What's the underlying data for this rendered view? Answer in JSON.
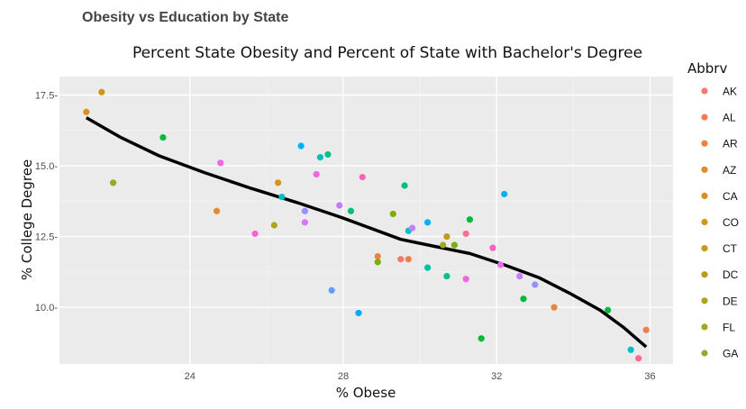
{
  "page_title": "Obesity vs Education by State",
  "chart_data": {
    "type": "scatter",
    "title": "Percent State Obesity and Percent of State with Bachelor's Degree",
    "xlabel": "% Obese",
    "ylabel": "% College Degree",
    "xlim": [
      20.6,
      36.6
    ],
    "ylim": [
      8.0,
      18.15
    ],
    "x_ticks": [
      24,
      28,
      32,
      36
    ],
    "y_ticks": [
      10.0,
      12.5,
      15.0,
      17.5
    ],
    "x_tick_labels": [
      "24",
      "28",
      "32",
      "36"
    ],
    "y_tick_labels": [
      "10.0-",
      "12.5-",
      "15.0-",
      "17.5-"
    ],
    "grid": true,
    "legend": {
      "title": "Abbrv",
      "placement": "right",
      "entries": [
        {
          "label": "AK",
          "color": "#F8766D"
        },
        {
          "label": "AL",
          "color": "#F07C55"
        },
        {
          "label": "AR",
          "color": "#E8843E"
        },
        {
          "label": "AZ",
          "color": "#E08B2C"
        },
        {
          "label": "CA",
          "color": "#D8911E"
        },
        {
          "label": "CO",
          "color": "#CF9619"
        },
        {
          "label": "CT",
          "color": "#C49A18"
        },
        {
          "label": "DC",
          "color": "#B99E1A"
        },
        {
          "label": "DE",
          "color": "#AEA21E"
        },
        {
          "label": "FL",
          "color": "#A3A524"
        },
        {
          "label": "GA",
          "color": "#97A82B"
        }
      ]
    },
    "points": [
      {
        "x": 21.3,
        "y": 16.9,
        "color": "#D8911E"
      },
      {
        "x": 21.7,
        "y": 17.6,
        "color": "#CF9619"
      },
      {
        "x": 22.0,
        "y": 14.4,
        "color": "#97A82B"
      },
      {
        "x": 23.3,
        "y": 16.0,
        "color": "#00BA38"
      },
      {
        "x": 24.7,
        "y": 13.4,
        "color": "#E08B2C"
      },
      {
        "x": 24.8,
        "y": 15.1,
        "color": "#F564E3"
      },
      {
        "x": 25.7,
        "y": 12.6,
        "color": "#FB61D7"
      },
      {
        "x": 26.2,
        "y": 12.9,
        "color": "#AEA21E"
      },
      {
        "x": 26.3,
        "y": 14.4,
        "color": "#D8911E"
      },
      {
        "x": 26.4,
        "y": 13.9,
        "color": "#00BFC4"
      },
      {
        "x": 26.9,
        "y": 15.7,
        "color": "#00B0F6"
      },
      {
        "x": 27.0,
        "y": 13.4,
        "color": "#9590FF"
      },
      {
        "x": 27.0,
        "y": 13.0,
        "color": "#DB72FB"
      },
      {
        "x": 27.3,
        "y": 14.7,
        "color": "#F564E3"
      },
      {
        "x": 27.4,
        "y": 15.3,
        "color": "#00BFC4"
      },
      {
        "x": 27.6,
        "y": 15.4,
        "color": "#00C08B"
      },
      {
        "x": 27.7,
        "y": 10.6,
        "color": "#619CFF"
      },
      {
        "x": 27.9,
        "y": 13.6,
        "color": "#C77CFF"
      },
      {
        "x": 28.2,
        "y": 13.4,
        "color": "#00BF7D"
      },
      {
        "x": 28.4,
        "y": 9.8,
        "color": "#00A9FF"
      },
      {
        "x": 28.5,
        "y": 14.6,
        "color": "#FF62BC"
      },
      {
        "x": 28.9,
        "y": 11.8,
        "color": "#E8843E"
      },
      {
        "x": 28.9,
        "y": 11.6,
        "color": "#7CAE00"
      },
      {
        "x": 29.3,
        "y": 13.3,
        "color": "#7CAE00"
      },
      {
        "x": 29.5,
        "y": 11.7,
        "color": "#F8766D"
      },
      {
        "x": 29.6,
        "y": 14.3,
        "color": "#00BF7D"
      },
      {
        "x": 29.7,
        "y": 12.7,
        "color": "#00BFC4"
      },
      {
        "x": 29.7,
        "y": 11.7,
        "color": "#F07C55"
      },
      {
        "x": 29.8,
        "y": 12.8,
        "color": "#C77CFF"
      },
      {
        "x": 30.2,
        "y": 13.0,
        "color": "#00B0F6"
      },
      {
        "x": 30.2,
        "y": 11.4,
        "color": "#00C1A3"
      },
      {
        "x": 30.6,
        "y": 12.2,
        "color": "#A3A524"
      },
      {
        "x": 30.7,
        "y": 12.5,
        "color": "#C49A18"
      },
      {
        "x": 30.7,
        "y": 11.1,
        "color": "#00C08B"
      },
      {
        "x": 30.9,
        "y": 12.2,
        "color": "#7CAE00"
      },
      {
        "x": 31.2,
        "y": 12.6,
        "color": "#FF6C91"
      },
      {
        "x": 31.2,
        "y": 11.0,
        "color": "#F564E3"
      },
      {
        "x": 31.3,
        "y": 13.1,
        "color": "#00BA38"
      },
      {
        "x": 31.6,
        "y": 8.9,
        "color": "#00BA38"
      },
      {
        "x": 31.9,
        "y": 12.1,
        "color": "#FF62BC"
      },
      {
        "x": 32.1,
        "y": 11.5,
        "color": "#E76BF3"
      },
      {
        "x": 32.2,
        "y": 14.0,
        "color": "#00B0F6"
      },
      {
        "x": 32.6,
        "y": 11.1,
        "color": "#C77CFF"
      },
      {
        "x": 32.7,
        "y": 10.3,
        "color": "#00BA38"
      },
      {
        "x": 33.0,
        "y": 10.8,
        "color": "#9590FF"
      },
      {
        "x": 33.5,
        "y": 10.0,
        "color": "#E8843E"
      },
      {
        "x": 34.9,
        "y": 9.9,
        "color": "#00BA38"
      },
      {
        "x": 35.5,
        "y": 8.5,
        "color": "#00BFC4"
      },
      {
        "x": 35.7,
        "y": 8.2,
        "color": "#FF6C91"
      },
      {
        "x": 35.9,
        "y": 9.2,
        "color": "#F07C55"
      }
    ],
    "trend": {
      "x": [
        21.3,
        22.2,
        23.2,
        24.4,
        25.6,
        26.8,
        27.9,
        28.7,
        29.5,
        30.4,
        31.3,
        32.2,
        33.1,
        33.9,
        34.7,
        35.3,
        35.9
      ],
      "y": [
        16.7,
        16.0,
        15.35,
        14.75,
        14.2,
        13.7,
        13.2,
        12.8,
        12.4,
        12.15,
        11.9,
        11.5,
        11.05,
        10.5,
        9.9,
        9.3,
        8.6
      ]
    }
  }
}
